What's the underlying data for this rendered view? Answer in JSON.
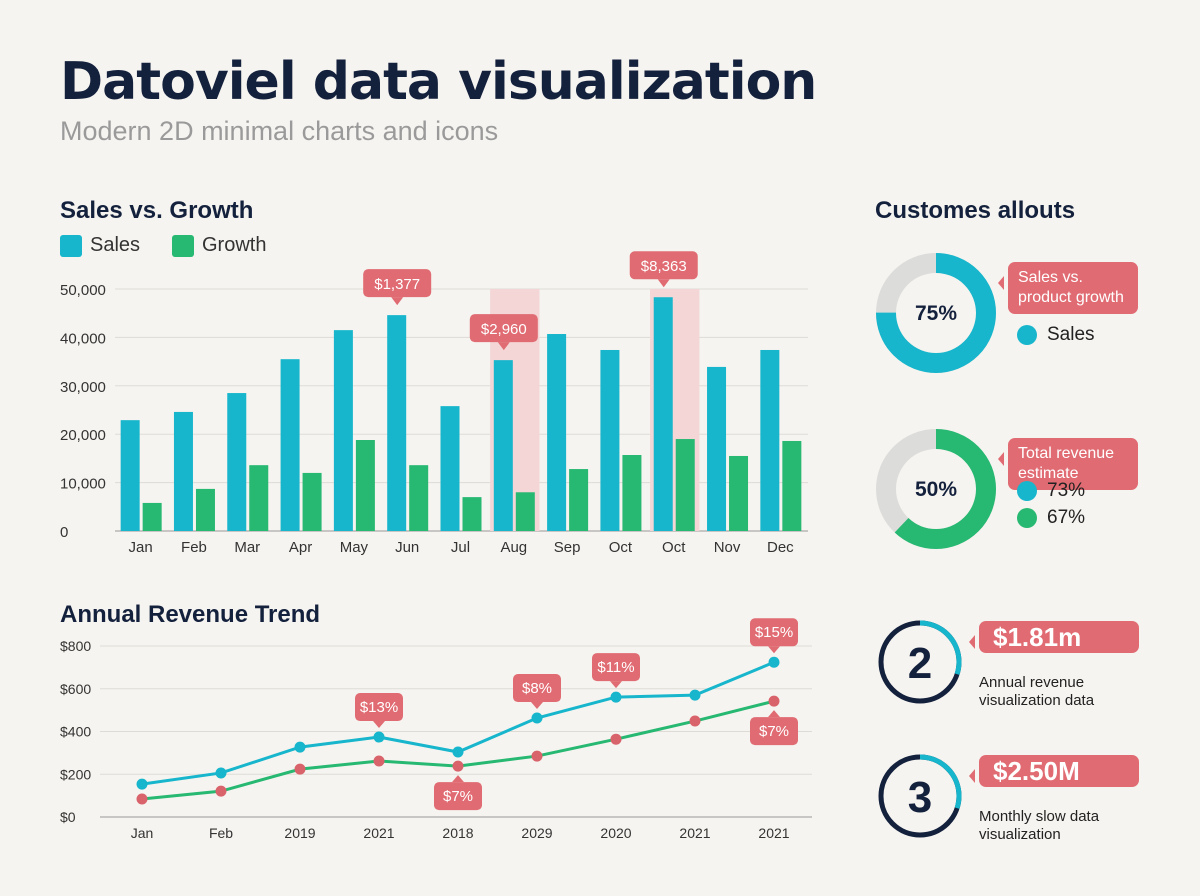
{
  "title": "Datoviel data visualization",
  "subtitle": "Modern 2D minimal charts and icons",
  "colors": {
    "sales": "#17b6cc",
    "growth": "#27b872",
    "callout": "#e06b72",
    "highlight": "#f3d6d5",
    "navy": "#14213d",
    "track": "#dcdcda"
  },
  "chart_data": [
    {
      "type": "bar",
      "title": "Sales vs. Growth",
      "categories": [
        "Jan",
        "Feb",
        "Mar",
        "Apr",
        "May",
        "Jun",
        "Jul",
        "Aug",
        "Sep",
        "Oct",
        "Oct",
        "Nov",
        "Dec"
      ],
      "series": [
        {
          "name": "Sales",
          "values": [
            22900,
            24600,
            28500,
            35500,
            41500,
            44600,
            25800,
            35300,
            40700,
            37400,
            48300,
            33900,
            37400
          ]
        },
        {
          "name": "Growth",
          "values": [
            5800,
            8700,
            13600,
            12000,
            18800,
            13600,
            7000,
            8000,
            12800,
            15700,
            19000,
            15500,
            18600
          ]
        }
      ],
      "yticks": [
        "0",
        "10,000",
        "20,000",
        "30,000",
        "40,000",
        "50,000"
      ],
      "ylim": [
        0,
        50000
      ],
      "grid": true,
      "legend": "top-left",
      "highlighted_categories": [
        7,
        10
      ],
      "annotations": [
        {
          "index": 5,
          "text": "$1,377"
        },
        {
          "index": 7,
          "text": "$2,960"
        },
        {
          "index": 10,
          "text": "$8,363"
        }
      ]
    },
    {
      "type": "line",
      "title": "Annual Revenue Trend",
      "categories": [
        "Jan",
        "Feb",
        "2019",
        "2021",
        "2018",
        "2029",
        "2020",
        "2021",
        "2021"
      ],
      "series": [
        {
          "values": [
            154,
            206,
            327,
            374,
            304,
            463,
            561,
            570,
            724
          ]
        },
        {
          "values": [
            84,
            121,
            224,
            262,
            238,
            285,
            364,
            449,
            542
          ]
        }
      ],
      "yticks": [
        "$0",
        "$200",
        "$400",
        "$600",
        "$800"
      ],
      "ylim": [
        0,
        800
      ],
      "grid": true,
      "annotations": [
        {
          "series": 0,
          "index": 3,
          "text": "$13%",
          "pos": "above"
        },
        {
          "series": 1,
          "index": 4,
          "text": "$7%",
          "pos": "below"
        },
        {
          "series": 0,
          "index": 5,
          "text": "$8%",
          "pos": "above"
        },
        {
          "series": 0,
          "index": 6,
          "text": "$11%",
          "pos": "above"
        },
        {
          "series": 0,
          "index": 8,
          "text": "$15%",
          "pos": "above"
        },
        {
          "series": 1,
          "index": 8,
          "text": "$7%",
          "pos": "below"
        }
      ]
    },
    {
      "type": "pie",
      "title": "Customes allouts",
      "donuts": [
        {
          "value": 75,
          "label": "75%",
          "callout": "Sales vs. product growth",
          "legend": [
            "Sales"
          ]
        },
        {
          "value": 50,
          "label": "50%",
          "callout": "Total revenue estimate",
          "legend": [
            "73%",
            "67%"
          ]
        }
      ]
    }
  ],
  "kpis": [
    {
      "number": "2",
      "value": "$1.81m",
      "desc": "Annual revenue visualization data",
      "progress": 0.3
    },
    {
      "number": "3",
      "value": "$2.50M",
      "desc": "Monthly slow data visualization",
      "progress": 0.3
    }
  ]
}
